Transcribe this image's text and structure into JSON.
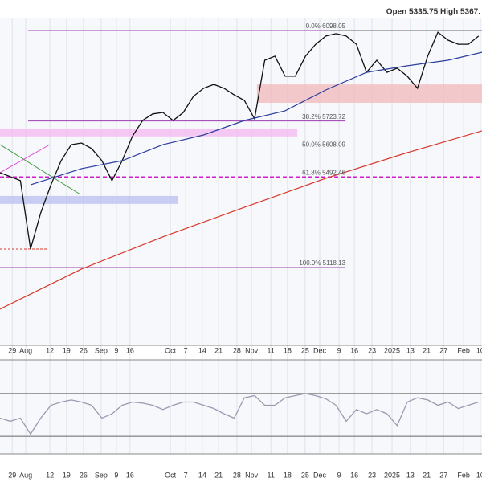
{
  "chart_data": [
    {
      "type": "line",
      "header": "Open 5335.75 High 5367.",
      "xlim": [
        0,
        142
      ],
      "ylim": [
        4796,
        6151
      ],
      "xticks": [
        {
          "value": 3.6,
          "label": "29"
        },
        {
          "value": 7.6,
          "label": "Aug"
        },
        {
          "value": 14.7,
          "label": "12"
        },
        {
          "value": 19.6,
          "label": "19"
        },
        {
          "value": 24.6,
          "label": "26"
        },
        {
          "value": 29.8,
          "label": "Sep"
        },
        {
          "value": 34.3,
          "label": "9"
        },
        {
          "value": 38.3,
          "label": "16"
        },
        {
          "value": 50.2,
          "label": "Oct"
        },
        {
          "value": 54.7,
          "label": "7"
        },
        {
          "value": 59.6,
          "label": "14"
        },
        {
          "value": 64.4,
          "label": "21"
        },
        {
          "value": 69.8,
          "label": "28"
        },
        {
          "value": 74.1,
          "label": "Nov"
        },
        {
          "value": 79.8,
          "label": "11"
        },
        {
          "value": 84.7,
          "label": "18"
        },
        {
          "value": 89.9,
          "label": "25"
        },
        {
          "value": 94.2,
          "label": "Dec"
        },
        {
          "value": 99.9,
          "label": "9"
        },
        {
          "value": 104.4,
          "label": "16"
        },
        {
          "value": 109.6,
          "label": "23"
        },
        {
          "value": 115.5,
          "label": "2025"
        },
        {
          "value": 120.9,
          "label": "13"
        },
        {
          "value": 125.7,
          "label": "21"
        },
        {
          "value": 130.7,
          "label": "27"
        },
        {
          "value": 136.6,
          "label": "Feb"
        },
        {
          "value": 141.5,
          "label": "10"
        }
      ],
      "x": [
        0,
        3,
        6,
        9,
        12,
        15,
        18,
        21,
        24,
        27,
        30,
        33,
        36,
        39,
        42,
        45,
        48,
        51,
        54,
        57,
        60,
        63,
        66,
        69,
        72,
        75,
        78,
        81,
        84,
        87,
        90,
        93,
        96,
        99,
        102,
        105,
        108,
        111,
        114,
        117,
        120,
        123,
        126,
        129,
        132,
        135,
        138,
        141
      ],
      "series": [
        {
          "color": "#111111",
          "values": [
            5510,
            5494,
            5477,
            5195,
            5344,
            5460,
            5560,
            5626,
            5633,
            5610,
            5560,
            5477,
            5560,
            5660,
            5726,
            5753,
            5759,
            5726,
            5759,
            5826,
            5859,
            5875,
            5859,
            5832,
            5809,
            5733,
            5975,
            5992,
            5909,
            5909,
            5992,
            6041,
            6075,
            6085,
            6075,
            6041,
            5925,
            5975,
            5925,
            5942,
            5909,
            5859,
            5992,
            6091,
            6058,
            6041,
            6041,
            6075
          ]
        },
        {
          "color": "#2b3d9e",
          "x": [
            9,
            24,
            36,
            48,
            60,
            72,
            84,
            96,
            108,
            120,
            132,
            142
          ],
          "values": [
            5460,
            5527,
            5560,
            5626,
            5666,
            5726,
            5766,
            5852,
            5925,
            5952,
            5975,
            6008
          ]
        },
        {
          "color": "#d9362b",
          "x": [
            0,
            24,
            48,
            72,
            96,
            120,
            142
          ],
          "values": [
            4946,
            5112,
            5245,
            5367,
            5487,
            5593,
            5683
          ]
        }
      ],
      "zones": [
        {
          "range": [
            5799,
            5875
          ],
          "xrange": [
            75.7,
            142
          ],
          "color": "#f2b8bb"
        },
        {
          "range": [
            5660,
            5693
          ],
          "xrange": [
            0,
            87.6
          ],
          "color": "#f4b8f0"
        },
        {
          "range": [
            5381,
            5414
          ],
          "xrange": [
            0,
            52.5
          ],
          "color": "#b9bff0"
        }
      ],
      "fib_levels": [
        {
          "level": {
            "value": 6098.05,
            "label": "0.0% 6098.05"
          },
          "xrange": [
            8.3,
            142
          ]
        },
        {
          "level": {
            "value": 5723.72,
            "label": "38.2% 5723.72"
          },
          "xrange": [
            8.3,
            101.8
          ]
        },
        {
          "level": {
            "value": 5608.09,
            "label": "50.0% 5608.09"
          },
          "xrange": [
            8.3,
            101.8
          ]
        },
        {
          "level": {
            "value": 5492.46,
            "label": "61.8% 5492.46"
          },
          "xrange": [
            0,
            142
          ]
        },
        {
          "level": {
            "value": 5118.13,
            "label": "100.0% 5118.13"
          },
          "xrange": [
            0,
            101.8
          ]
        }
      ],
      "resistance": {
        "value": 6098,
        "xrange": [
          97,
          142
        ],
        "color": "#2e8b2e"
      }
    },
    {
      "type": "line",
      "xlim": [
        0,
        142
      ],
      "ylim": [
        13.5,
        101.5
      ],
      "x": [
        0,
        3,
        6,
        9,
        12,
        15,
        18,
        21,
        24,
        27,
        30,
        33,
        36,
        39,
        42,
        45,
        48,
        51,
        54,
        57,
        60,
        63,
        66,
        69,
        72,
        75,
        78,
        81,
        84,
        87,
        90,
        93,
        96,
        99,
        102,
        105,
        108,
        111,
        114,
        117,
        120,
        123,
        126,
        129,
        132,
        135,
        138,
        141
      ],
      "levels": [
        30,
        50,
        70
      ],
      "series": [
        {
          "color": "#9a9ab0",
          "values": [
            47,
            44,
            47,
            32,
            47,
            59,
            62,
            64,
            62,
            59,
            47,
            51,
            59,
            62,
            61,
            59,
            55,
            59,
            62,
            62,
            59,
            56,
            51,
            47,
            66,
            68,
            59,
            59,
            66,
            68,
            70,
            68,
            65,
            59,
            44,
            55,
            51,
            55,
            51,
            40,
            62,
            66,
            64,
            59,
            62,
            56,
            59,
            62
          ]
        }
      ]
    }
  ]
}
